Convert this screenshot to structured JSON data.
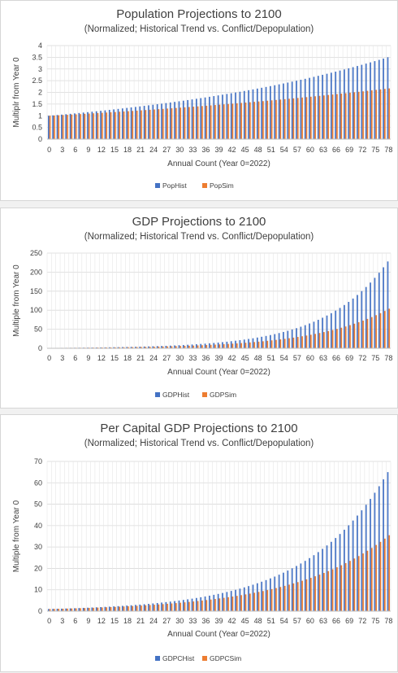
{
  "chart_data": [
    {
      "type": "bar",
      "title": "Population Projections to 2100",
      "subtitle": "(Normalized; Historical Trend vs. Conflict/Depopulation)",
      "xlabel": "Annual Count (Year 0=2022)",
      "ylabel": "Multiplr from Year 0",
      "x_ticks": [
        "0",
        "3",
        "6",
        "9",
        "12",
        "15",
        "18",
        "21",
        "24",
        "27",
        "30",
        "33",
        "36",
        "39",
        "42",
        "45",
        "48",
        "51",
        "54",
        "57",
        "60",
        "63",
        "66",
        "69",
        "72",
        "75",
        "78"
      ],
      "y_ticks": [
        "0",
        "0.5",
        "1",
        "1.5",
        "2",
        "2.5",
        "3",
        "3.5",
        "4"
      ],
      "ylim": [
        0,
        4
      ],
      "grid": true,
      "legend_position": "bottom",
      "series": [
        {
          "name": "PopHist",
          "color": "#4472c4",
          "start": 1.0,
          "end": 3.5
        },
        {
          "name": "PopSim",
          "color": "#ed7d31",
          "start": 1.0,
          "end": 2.17
        }
      ]
    },
    {
      "type": "bar",
      "title": "GDP Projections to 2100",
      "subtitle": "(Normalized; Historical Trend vs. Conflict/Depopulation)",
      "xlabel": "Annual Count (Year 0=2022)",
      "ylabel": "Multiple from Year 0",
      "x_ticks": [
        "0",
        "3",
        "6",
        "9",
        "12",
        "15",
        "18",
        "21",
        "24",
        "27",
        "30",
        "33",
        "36",
        "39",
        "42",
        "45",
        "48",
        "51",
        "54",
        "57",
        "60",
        "63",
        "66",
        "69",
        "72",
        "75",
        "78"
      ],
      "y_ticks": [
        "0",
        "50",
        "100",
        "150",
        "200",
        "250"
      ],
      "ylim": [
        0,
        250
      ],
      "grid": true,
      "legend_position": "bottom",
      "series": [
        {
          "name": "GDPHist",
          "color": "#4472c4",
          "start": 1.0,
          "end": 228
        },
        {
          "name": "GDPSim",
          "color": "#ed7d31",
          "start": 1.0,
          "end": 104
        }
      ]
    },
    {
      "type": "bar",
      "title": "Per Capital GDP Projections to 2100",
      "subtitle": "(Normalized; Historical Trend vs. Conflict/Depopulation)",
      "xlabel": "Annual Count (Year 0=2022)",
      "ylabel": "Multiple from Year 0",
      "x_ticks": [
        "0",
        "3",
        "6",
        "9",
        "12",
        "15",
        "18",
        "21",
        "24",
        "27",
        "30",
        "33",
        "36",
        "39",
        "42",
        "45",
        "48",
        "51",
        "54",
        "57",
        "60",
        "63",
        "66",
        "69",
        "72",
        "75",
        "78"
      ],
      "y_ticks": [
        "0",
        "10",
        "20",
        "30",
        "40",
        "50",
        "60",
        "70"
      ],
      "ylim": [
        0,
        70
      ],
      "grid": true,
      "legend_position": "bottom",
      "series": [
        {
          "name": "GDPCHist",
          "color": "#4472c4",
          "start": 1.0,
          "end": 65
        },
        {
          "name": "GDPCSim",
          "color": "#ed7d31",
          "start": 1.0,
          "end": 35.5
        }
      ]
    }
  ]
}
